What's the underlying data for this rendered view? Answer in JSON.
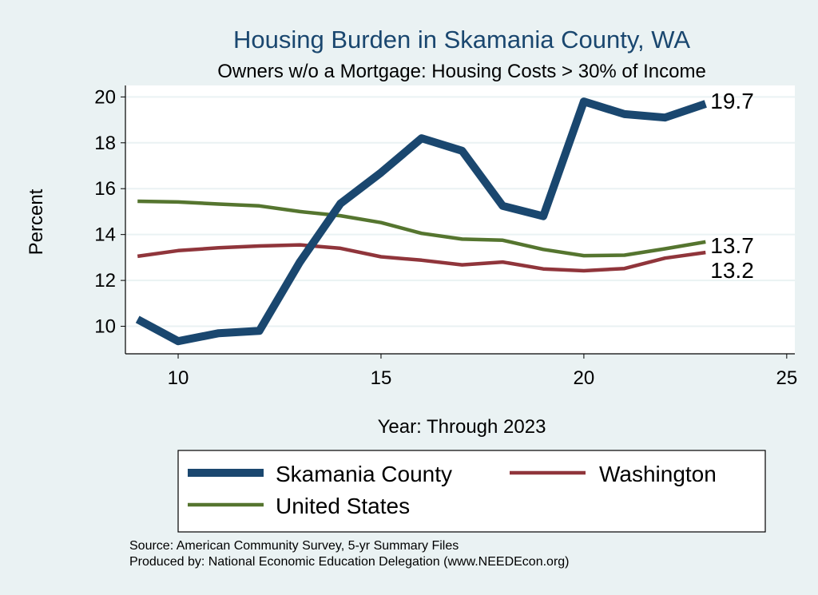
{
  "chart_data": {
    "type": "line",
    "title": "Housing Burden in Skamania County, WA",
    "subtitle": "Owners w/o a Mortgage: Housing Costs > 30% of Income",
    "xlabel": "Year: Through 2023",
    "ylabel": "Percent",
    "xlim": [
      8.7,
      25.2
    ],
    "ylim": [
      8.8,
      20.5
    ],
    "xticks": [
      10,
      15,
      20,
      25
    ],
    "yticks": [
      10,
      12,
      14,
      16,
      18,
      20
    ],
    "grid": true,
    "legend_position": "bottom",
    "x": [
      9,
      10,
      11,
      12,
      13,
      14,
      15,
      16,
      17,
      18,
      19,
      20,
      21,
      22,
      23
    ],
    "series": [
      {
        "name": "Skamania County",
        "color": "#1a476f",
        "width": "thick",
        "values": [
          10.3,
          9.35,
          9.7,
          9.8,
          12.8,
          15.35,
          16.7,
          18.2,
          17.65,
          15.25,
          14.8,
          19.8,
          19.25,
          19.1,
          19.7
        ],
        "end_label": "19.7"
      },
      {
        "name": "Washington",
        "color": "#90353b",
        "width": "thin",
        "values": [
          13.05,
          13.3,
          13.42,
          13.5,
          13.55,
          13.4,
          13.03,
          12.88,
          12.68,
          12.8,
          12.5,
          12.42,
          12.52,
          12.97,
          13.22
        ],
        "end_label": "13.2"
      },
      {
        "name": "United States",
        "color": "#55752f",
        "width": "thin",
        "values": [
          15.45,
          15.42,
          15.33,
          15.25,
          15.0,
          14.82,
          14.52,
          14.05,
          13.8,
          13.75,
          13.35,
          13.08,
          13.1,
          13.38,
          13.68
        ],
        "end_label": "13.7"
      }
    ],
    "source_lines": [
      "Source: American Community Survey, 5-yr Summary Files",
      "Produced by: National Economic Education Delegation (www.NEEDEcon.org)"
    ]
  }
}
